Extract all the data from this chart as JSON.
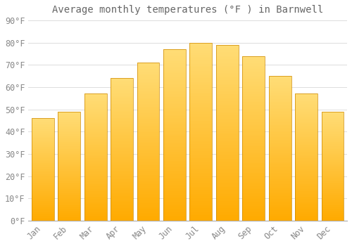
{
  "title": "Average monthly temperatures (°F ) in Barnwell",
  "months": [
    "Jan",
    "Feb",
    "Mar",
    "Apr",
    "May",
    "Jun",
    "Jul",
    "Aug",
    "Sep",
    "Oct",
    "Nov",
    "Dec"
  ],
  "values": [
    46,
    49,
    57,
    64,
    71,
    77,
    80,
    79,
    74,
    65,
    57,
    49
  ],
  "bar_color_top": "#FFAA00",
  "bar_color_bottom": "#FFD966",
  "bar_edge_color": "#CC8800",
  "background_color": "#FFFFFF",
  "grid_color": "#DDDDDD",
  "text_color": "#888888",
  "title_color": "#666666",
  "ylim": [
    0,
    90
  ],
  "yticks": [
    0,
    10,
    20,
    30,
    40,
    50,
    60,
    70,
    80,
    90
  ],
  "title_fontsize": 10,
  "tick_fontsize": 8.5,
  "bar_width": 0.85
}
